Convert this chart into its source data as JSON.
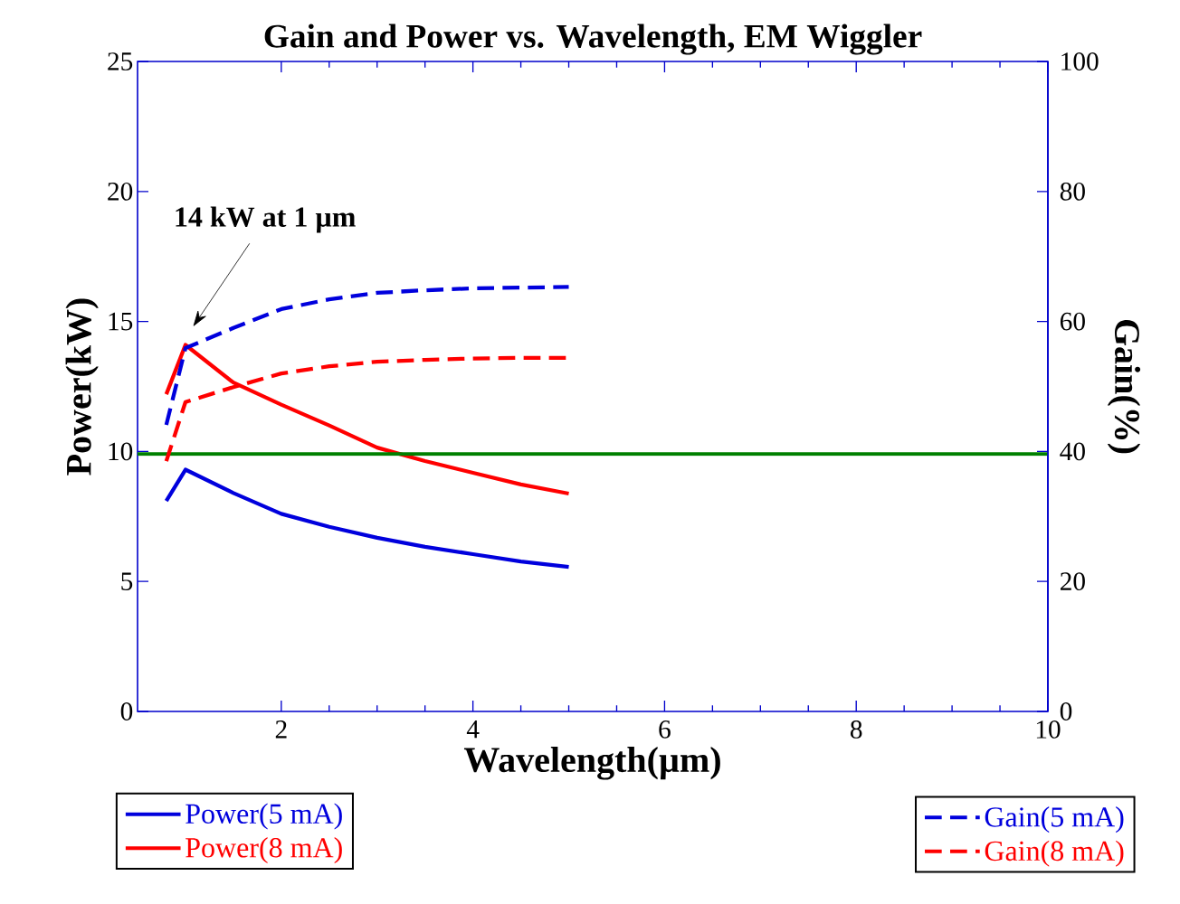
{
  "chart_data": {
    "type": "line",
    "title": "Gain and Power vs. Wavelength, EM Wiggler",
    "xlabel": "Wavelength(µm)",
    "ylabel": "Power(kW)",
    "y2label": "Gain(%)",
    "x": [
      0.8,
      1.0,
      1.5,
      2,
      2.5,
      3,
      3.5,
      4,
      4.5,
      5
    ],
    "series": [
      {
        "name": "Power(5 mA)",
        "color": "#0000dd",
        "line_style": "solid",
        "values": [
          8.1,
          9.3,
          8.4,
          7.6,
          7.1,
          6.68,
          6.33,
          6.05,
          5.77,
          5.56
        ]
      },
      {
        "name": "Power(8 mA)",
        "color": "#ff0000",
        "line_style": "solid",
        "values": [
          12.2,
          14.1,
          12.65,
          11.8,
          11.0,
          10.15,
          9.63,
          9.18,
          8.73,
          8.38
        ]
      },
      {
        "name": "Gain(5 mA)",
        "color": "#0000dd",
        "line_style": "dashed",
        "axis": "y2",
        "values": [
          44.1,
          55.9,
          59.0,
          61.9,
          63.4,
          64.4,
          64.8,
          65.1,
          65.2,
          65.3
        ]
      },
      {
        "name": "Gain(8 mA)",
        "color": "#ff0000",
        "line_style": "dashed",
        "axis": "y2",
        "values": [
          38.5,
          47.6,
          49.9,
          52.0,
          53.1,
          53.8,
          54.1,
          54.3,
          54.4,
          54.4
        ]
      }
    ],
    "xlim": [
      0.5,
      10
    ],
    "xticks": [
      2,
      4,
      6,
      8,
      10
    ],
    "ylim": [
      0,
      25
    ],
    "yticks": [
      0,
      5,
      10,
      15,
      20,
      25
    ],
    "y2lim": [
      0,
      100
    ],
    "y2ticks": [
      0,
      20,
      40,
      60,
      80,
      100
    ],
    "ref_lines": [
      {
        "axis": "y",
        "value": 9.9,
        "color": "#008000"
      }
    ],
    "annotations": [
      "**14 kW at 1 µm**"
    ],
    "legend": "bottom",
    "grid": false,
    "marker": "none"
  }
}
